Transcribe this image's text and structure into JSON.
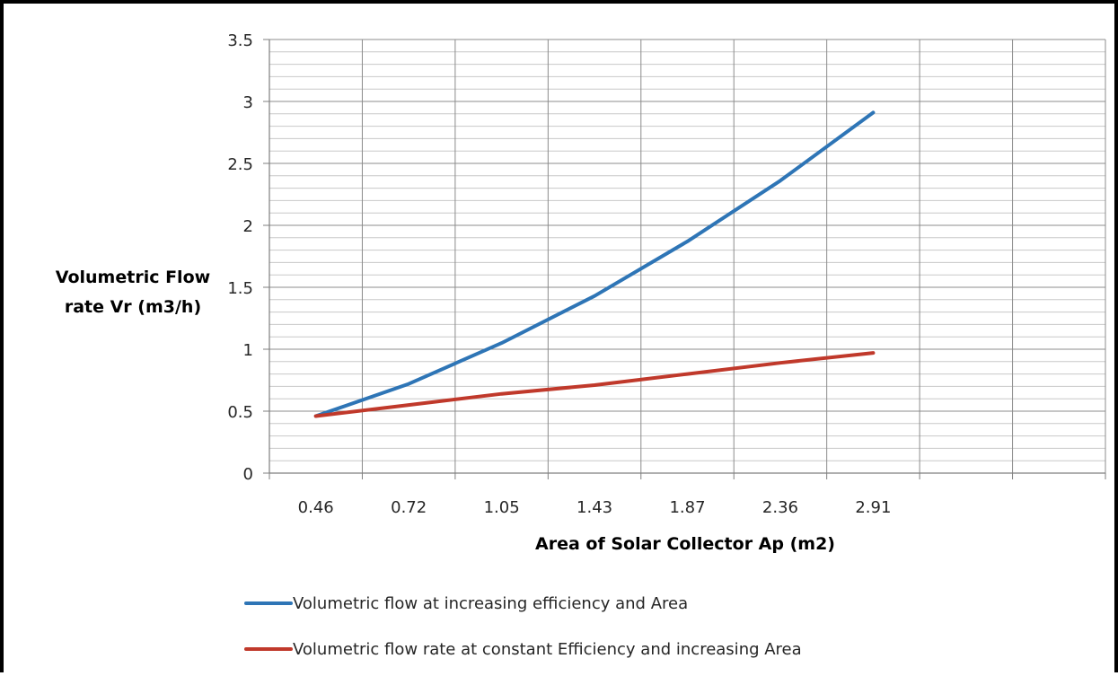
{
  "chart_data": {
    "type": "line",
    "title": "",
    "xlabel": "Area of Solar Collector Ap (m2)",
    "ylabel_lines": [
      "Volumetric Flow",
      "rate Vr (m3/h)"
    ],
    "categories": [
      "0.46",
      "0.72",
      "1.05",
      "1.43",
      "1.87",
      "2.36",
      "2.91"
    ],
    "ylim": [
      0,
      3.5
    ],
    "ytick_step": 0.5,
    "ytick_labels": [
      "0",
      "0.5",
      "1",
      "1.5",
      "2",
      "2.5",
      "3",
      "3.5"
    ],
    "category_slots": 9,
    "grid": true,
    "minor_y_step": 0.1,
    "legend_position": "bottom",
    "series": [
      {
        "name": "Volumetric flow at increasing efficiency and Area",
        "color": "#2E75B6",
        "values": [
          0.46,
          0.72,
          1.05,
          1.43,
          1.87,
          2.36,
          2.91
        ]
      },
      {
        "name": "Volumetric flow rate at constant Efficiency and increasing Area",
        "color": "#C0392B",
        "values": [
          0.46,
          0.55,
          0.64,
          0.71,
          0.8,
          0.89,
          0.97
        ]
      }
    ]
  }
}
